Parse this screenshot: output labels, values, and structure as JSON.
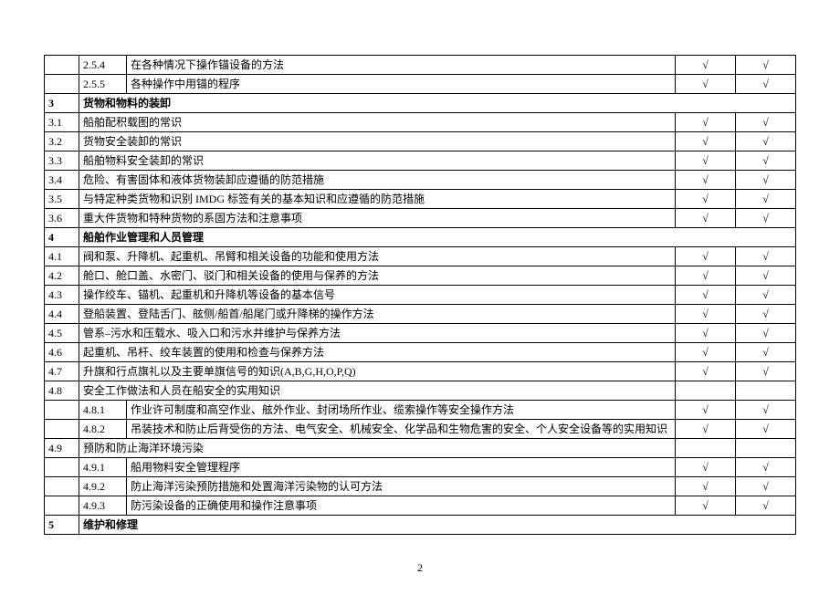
{
  "page_number": "2",
  "check_mark": "√",
  "rows": [
    {
      "type": "sub2",
      "num": "",
      "sub": "2.5.4",
      "text": "在各种情况下操作锚设备的方法",
      "c1": true,
      "c2": true
    },
    {
      "type": "sub2",
      "num": "",
      "sub": "2.5.5",
      "text": "各种操作中用锚的程序",
      "c1": true,
      "c2": true
    },
    {
      "type": "section",
      "num": "3",
      "sub": "",
      "text": "货物和物料的装卸",
      "c1": null,
      "c2": null
    },
    {
      "type": "sub1",
      "num": "3.1",
      "sub": "",
      "text": "船舶配积载图的常识",
      "c1": true,
      "c2": true
    },
    {
      "type": "sub1",
      "num": "3.2",
      "sub": "",
      "text": "货物安全装卸的常识",
      "c1": true,
      "c2": true
    },
    {
      "type": "sub1",
      "num": "3.3",
      "sub": "",
      "text": "船舶物料安全装卸的常识",
      "c1": true,
      "c2": true
    },
    {
      "type": "sub1",
      "num": "3.4",
      "sub": "",
      "text": "危险、有害固体和液体货物装卸应遵循的防范措施",
      "c1": true,
      "c2": true
    },
    {
      "type": "sub1",
      "num": "3.5",
      "sub": "",
      "text": "与特定种类货物和识别 IMDG 标签有关的基本知识和应遵循的防范措施",
      "c1": true,
      "c2": true
    },
    {
      "type": "sub1",
      "num": "3.6",
      "sub": "",
      "text": "重大件货物和特种货物的系固方法和注意事项",
      "c1": true,
      "c2": true
    },
    {
      "type": "section",
      "num": "4",
      "sub": "",
      "text": "船舶作业管理和人员管理",
      "c1": null,
      "c2": null
    },
    {
      "type": "sub1",
      "num": "4.1",
      "sub": "",
      "text": "阀和泵、升降机、起重机、吊臂和相关设备的功能和使用方法",
      "c1": true,
      "c2": true
    },
    {
      "type": "sub1",
      "num": "4.2",
      "sub": "",
      "text": "舱口、舱口盖、水密门、驳门和相关设备的使用与保养的方法",
      "c1": true,
      "c2": true
    },
    {
      "type": "sub1",
      "num": "4.3",
      "sub": "",
      "text": "操作绞车、锚机、起重机和升降机等设备的基本信号",
      "c1": true,
      "c2": true
    },
    {
      "type": "sub1",
      "num": "4.4",
      "sub": "",
      "text": "登船装置、登陆舌门、舷侧/船首/船尾门或升降梯的操作方法",
      "c1": true,
      "c2": true
    },
    {
      "type": "sub1",
      "num": "4.5",
      "sub": "",
      "text": "管系–污水和压载水、吸入口和污水井维护与保养方法",
      "c1": true,
      "c2": true
    },
    {
      "type": "sub1",
      "num": "4.6",
      "sub": "",
      "text": "起重机、吊杆、绞车装置的使用和检查与保养方法",
      "c1": true,
      "c2": true
    },
    {
      "type": "sub1",
      "num": "4.7",
      "sub": "",
      "text": "升旗和行点旗礼以及主要单旗信号的知识(A,B,G,H,O,P,Q)",
      "c1": true,
      "c2": true
    },
    {
      "type": "sub1",
      "num": "4.8",
      "sub": "",
      "text": "安全工作做法和人员在船安全的实用知识",
      "c1": null,
      "c2": null
    },
    {
      "type": "sub2",
      "num": "",
      "sub": "4.8.1",
      "text": "作业许可制度和高空作业、舷外作业、封闭场所作业、缆索操作等安全操作方法",
      "c1": true,
      "c2": true
    },
    {
      "type": "sub2",
      "num": "",
      "sub": "4.8.2",
      "text": "吊装技术和防止后背受伤的方法、电气安全、机械安全、化学品和生物危害的安全、个人安全设备等的实用知识",
      "c1": true,
      "c2": true
    },
    {
      "type": "sub1",
      "num": "4.9",
      "sub": "",
      "text": "预防和防止海洋环境污染",
      "c1": null,
      "c2": null
    },
    {
      "type": "sub2",
      "num": "",
      "sub": "4.9.1",
      "text": "船用物料安全管理程序",
      "c1": true,
      "c2": true
    },
    {
      "type": "sub2",
      "num": "",
      "sub": "4.9.2",
      "text": "防止海洋污染预防措施和处置海洋污染物的认可方法",
      "c1": true,
      "c2": true
    },
    {
      "type": "sub2",
      "num": "",
      "sub": "4.9.3",
      "text": "防污染设备的正确使用和操作注意事项",
      "c1": true,
      "c2": true
    },
    {
      "type": "section",
      "num": "5",
      "sub": "",
      "text": "维护和修理",
      "c1": null,
      "c2": null
    }
  ]
}
